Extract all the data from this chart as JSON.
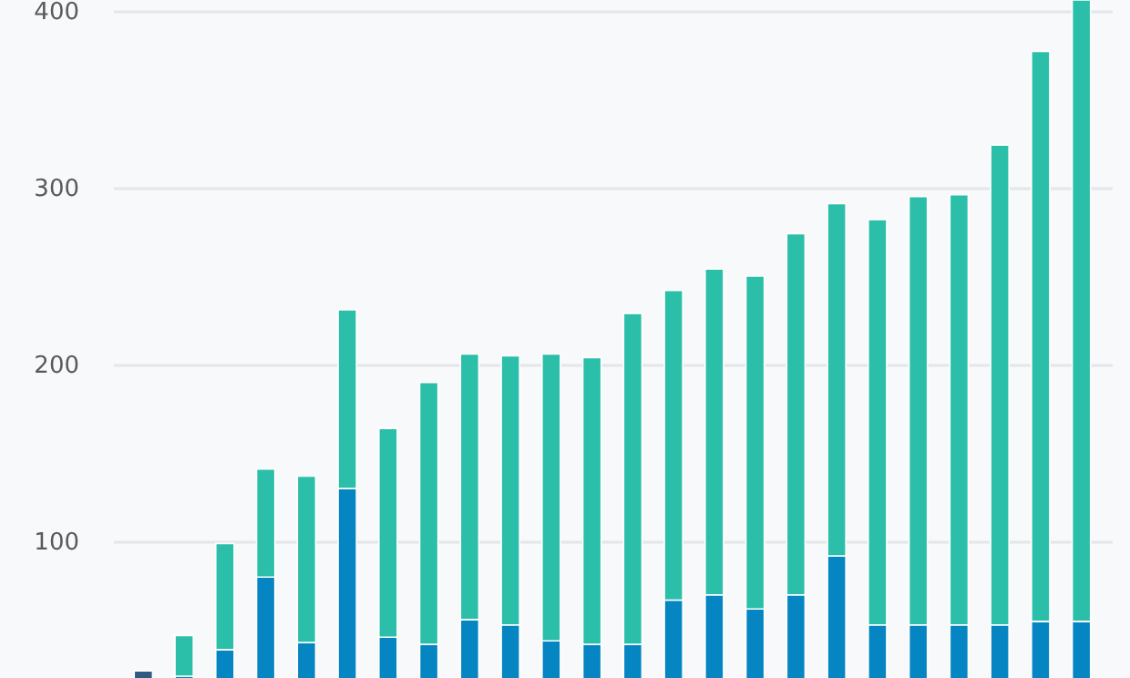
{
  "chart_data": {
    "type": "bar",
    "stacked": true,
    "categories": [
      null,
      null,
      null,
      null,
      null,
      null,
      null,
      null,
      null,
      null,
      null,
      null,
      null,
      null,
      null,
      null,
      null,
      null,
      null,
      null,
      null,
      null,
      null,
      null
    ],
    "series": [
      {
        "color": "#2e5b82",
        "values": [
          27,
          null,
          null,
          null,
          null,
          null,
          null,
          null,
          null,
          null,
          null,
          null,
          null,
          null,
          null,
          null,
          null,
          null,
          null,
          null,
          null,
          null,
          null,
          null
        ]
      },
      {
        "color": "#0585c2",
        "values": [
          null,
          24,
          39,
          80,
          43,
          130,
          46,
          42,
          56,
          53,
          44,
          42,
          42,
          67,
          70,
          62,
          70,
          92,
          53,
          53,
          53,
          53,
          55,
          55
        ]
      },
      {
        "color": "#2bbfa9",
        "values": [
          null,
          23,
          60,
          61,
          94,
          101,
          118,
          148,
          150,
          152,
          162,
          162,
          187,
          175,
          184,
          188,
          204,
          199,
          229,
          242,
          243,
          271,
          322,
          351
        ]
      }
    ],
    "ylim": [
      23,
      406
    ],
    "yticks": [
      100,
      200,
      300,
      400
    ],
    "grid": "y"
  }
}
